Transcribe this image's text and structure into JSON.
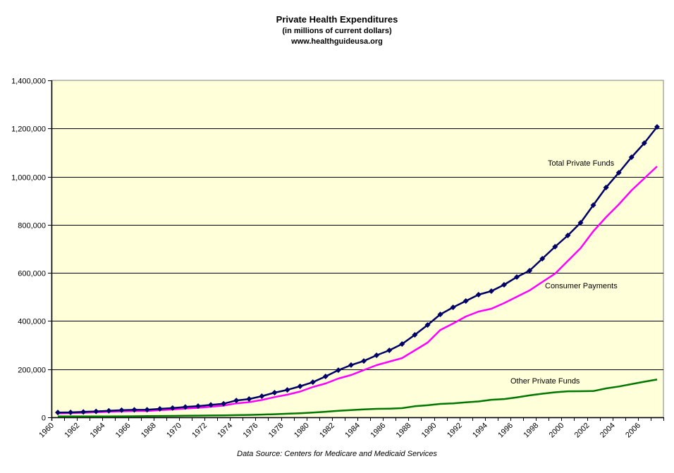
{
  "chart_data": {
    "type": "line",
    "title": "Private Health Expenditures",
    "subtitle": "(in millions of current dollars)",
    "website": "www.healthguideusa.org",
    "source": "Data Source: Centers for Medicare and Medicaid Services",
    "xlabel": "",
    "ylabel": "",
    "ylim": [
      0,
      1400000
    ],
    "yticks": [
      0,
      200000,
      400000,
      600000,
      800000,
      1000000,
      1200000,
      1400000
    ],
    "ytick_labels": [
      "0",
      "200,000",
      "400,000",
      "600,000",
      "800,000",
      "1,000,000",
      "1,200,000",
      "1,400,000"
    ],
    "categories": [
      "1960",
      "1961",
      "1962",
      "1963",
      "1964",
      "1965",
      "1966",
      "1967",
      "1968",
      "1969",
      "1970",
      "1971",
      "1972",
      "1973",
      "1974",
      "1975",
      "1976",
      "1977",
      "1978",
      "1979",
      "1980",
      "1981",
      "1982",
      "1983",
      "1984",
      "1985",
      "1986",
      "1987",
      "1988",
      "1989",
      "1990",
      "1991",
      "1992",
      "1993",
      "1994",
      "1995",
      "1996",
      "1997",
      "1998",
      "1999",
      "2000",
      "2001",
      "2002",
      "2003",
      "2004",
      "2005",
      "2006",
      "2007"
    ],
    "xtick_labels": [
      "1960",
      "1962",
      "1964",
      "1966",
      "1968",
      "1970",
      "1972",
      "1974",
      "1976",
      "1978",
      "1980",
      "1982",
      "1984",
      "1986",
      "1988",
      "1990",
      "1992",
      "1994",
      "1996",
      "1998",
      "2000",
      "2002",
      "2004",
      "2006"
    ],
    "grid": true,
    "background": "#ffffd9",
    "series": [
      {
        "name": "Total Private Funds",
        "color": "#000066",
        "markers": true,
        "label_year": "2000",
        "values": [
          20000,
          20500,
          22500,
          24500,
          27000,
          29500,
          31000,
          31500,
          35000,
          38500,
          43000,
          46500,
          51500,
          56500,
          70000,
          76000,
          88000,
          102500,
          114000,
          129000,
          146000,
          170000,
          196000,
          217000,
          234000,
          257700,
          278200,
          304600,
          342700,
          383700,
          427600,
          456900,
          483300,
          509600,
          524300,
          550600,
          582800,
          609200,
          659000,
          708800,
          755600,
          808400,
          881600,
          954800,
          1016300,
          1080800,
          1139300,
          1206700
        ]
      },
      {
        "name": "Consumer Payments",
        "color": "#ff00ff",
        "markers": false,
        "label_year": "1998",
        "values": [
          16500,
          17500,
          19000,
          21000,
          23000,
          25000,
          26000,
          26500,
          29500,
          32500,
          36500,
          39500,
          44000,
          48500,
          58000,
          63000,
          72000,
          84000,
          94000,
          107000,
          126000,
          140600,
          161100,
          175700,
          196200,
          216700,
          231400,
          246000,
          278200,
          310500,
          363000,
          389500,
          418800,
          439300,
          451000,
          474500,
          500800,
          527200,
          562300,
          597000,
          650000,
          703000,
          773000,
          831600,
          884400,
          943000,
          993000,
          1042600
        ]
      },
      {
        "name": "Other Private Funds",
        "color": "#007700",
        "markers": false,
        "label_year": "1994",
        "values": [
          3500,
          3500,
          3500,
          3500,
          3500,
          4000,
          4500,
          5000,
          5500,
          6000,
          6500,
          7000,
          7500,
          8000,
          9000,
          10000,
          11500,
          13000,
          15000,
          17000,
          20000,
          23000,
          27000,
          30000,
          33000,
          35000,
          36000,
          38000,
          46000,
          50000,
          55600,
          58000,
          62000,
          66000,
          73000,
          76000,
          83000,
          91000,
          98000,
          104000,
          108000,
          108500,
          109000,
          120000,
          128000,
          138000,
          148000,
          157000
        ]
      }
    ]
  }
}
